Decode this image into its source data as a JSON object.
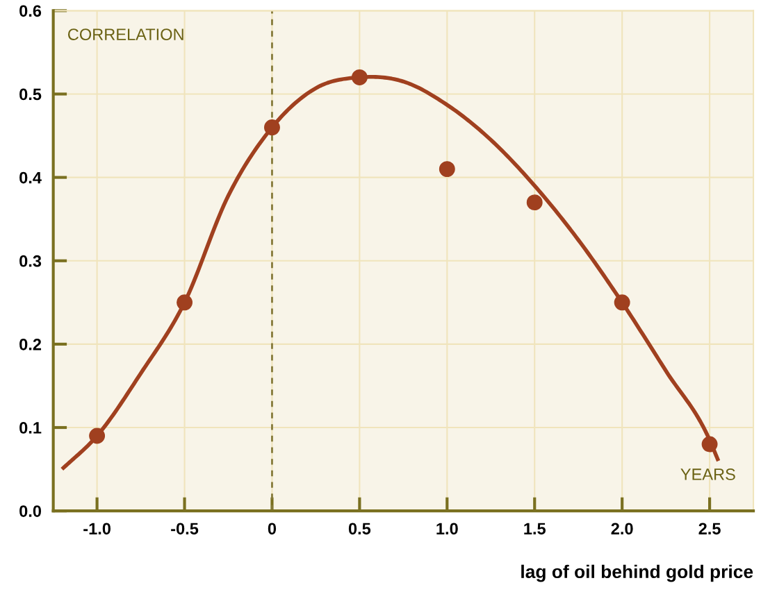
{
  "chart_data": {
    "type": "scatter",
    "xlabel": "lag of oil behind gold price",
    "annotations": [
      "CORRELATION",
      "YEARS"
    ],
    "series": [
      {
        "color": "#a0401f",
        "x": [
          -1.0,
          -0.5,
          0,
          0.5,
          1.0,
          1.5,
          2.0,
          2.5
        ],
        "values": [
          0.09,
          0.25,
          0.46,
          0.52,
          0.41,
          0.37,
          0.25,
          0.08
        ]
      },
      {
        "type": "line",
        "color": "#a0401f",
        "x": [
          -1.2,
          -1.0,
          -0.75,
          -0.5,
          -0.25,
          0,
          0.25,
          0.5,
          0.75,
          1.0,
          1.25,
          1.5,
          1.75,
          2.0,
          2.25,
          2.5,
          2.55
        ],
        "values": [
          0.05,
          0.09,
          0.165,
          0.25,
          0.378,
          0.46,
          0.507,
          0.52,
          0.515,
          0.487,
          0.445,
          0.39,
          0.325,
          0.25,
          0.168,
          0.085,
          0.06
        ]
      }
    ],
    "xlim": [
      -1.25,
      2.75
    ],
    "ylim": [
      0,
      0.6
    ],
    "xticks": [
      {
        "value": -1.0,
        "label": "-1.0"
      },
      {
        "value": -0.5,
        "label": "-0.5"
      },
      0,
      0.5,
      {
        "value": 1.0,
        "label": "1.0"
      },
      1.5,
      {
        "value": 2.0,
        "label": "2.0"
      },
      2.5
    ],
    "yticks": [
      {
        "value": 0,
        "label": "0.0"
      },
      0.1,
      0.2,
      0.3,
      0.4,
      0.5,
      0.6
    ],
    "ref_lines": [
      {
        "axis": "x",
        "value": 0,
        "color": "#857a3a",
        "line_style": "dashed"
      }
    ],
    "grid": true,
    "legend": false
  }
}
